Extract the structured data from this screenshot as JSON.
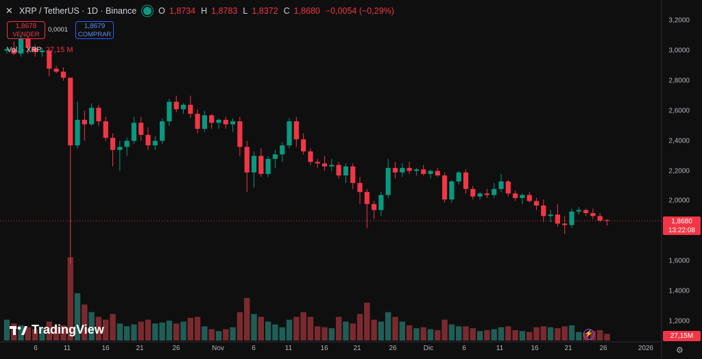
{
  "header": {
    "symbol_title": "XRP / TetherUS · 1D · Binance",
    "ohlc": [
      {
        "k": "O",
        "v": "1,8734"
      },
      {
        "k": "H",
        "v": "1,8783"
      },
      {
        "k": "L",
        "v": "1,8372"
      },
      {
        "k": "C",
        "v": "1,8680"
      }
    ],
    "change": "−0,0054 (−0,29%)"
  },
  "quote": {
    "sell_price": "1,8678",
    "sell_label": "VENDER",
    "spread": "0,0001",
    "buy_price": "1,8679",
    "buy_label": "COMPRAR"
  },
  "volume_legend": {
    "label": "Vol. · XRP",
    "value": "27,15 M"
  },
  "price_tag": {
    "price": "1,8680",
    "countdown": "13:22:08"
  },
  "volume_tag": "27,15M",
  "logo_text": "TradingView",
  "icons": {
    "symbol": "xrp-icon",
    "status": "market-open-dot-icon",
    "flash": "lightning-icon",
    "settings": "gear-icon",
    "logo": "tradingview-logo-icon"
  },
  "colors": {
    "up": "#089981",
    "down": "#f23645",
    "up_volume": "#1f5e56",
    "down_volume": "#7a2a2e",
    "background": "#0f0f0f"
  },
  "chart_data": {
    "type": "candlestick",
    "price_axis": {
      "ticks": [
        "3,2000",
        "3,0000",
        "2,8000",
        "2,6000",
        "2,4000",
        "2,2000",
        "2,0000",
        "1,8000",
        "1,6000",
        "1,4000",
        "1,2000"
      ],
      "range": [
        1.12,
        3.26
      ]
    },
    "time_axis": {
      "ticks": [
        "6",
        "11",
        "16",
        "21",
        "26",
        "Nov",
        "6",
        "11",
        "16",
        "21",
        "26",
        "Dic",
        "6",
        "11",
        "16",
        "21",
        "26",
        "2026"
      ]
    },
    "grid": false,
    "last_price_line": 1.868,
    "candles": [
      [
        3.0,
        3.02,
        2.98,
        3.01,
        22
      ],
      [
        3.01,
        3.06,
        2.97,
        2.98,
        18
      ],
      [
        2.98,
        3.1,
        2.96,
        3.08,
        16
      ],
      [
        3.08,
        3.1,
        2.98,
        3.02,
        14
      ],
      [
        3.02,
        3.04,
        2.96,
        2.99,
        12
      ],
      [
        2.99,
        3.02,
        2.96,
        3.0,
        13
      ],
      [
        3.0,
        3.01,
        2.83,
        2.88,
        20
      ],
      [
        2.88,
        2.9,
        2.85,
        2.86,
        15
      ],
      [
        2.86,
        2.89,
        2.8,
        2.82,
        16
      ],
      [
        2.82,
        2.82,
        1.58,
        2.37,
        88
      ],
      [
        2.37,
        2.66,
        2.35,
        2.54,
        50
      ],
      [
        2.54,
        2.6,
        2.4,
        2.51,
        38
      ],
      [
        2.51,
        2.65,
        2.5,
        2.62,
        30
      ],
      [
        2.62,
        2.64,
        2.5,
        2.53,
        25
      ],
      [
        2.53,
        2.56,
        2.4,
        2.42,
        22
      ],
      [
        2.42,
        2.45,
        2.23,
        2.34,
        28
      ],
      [
        2.34,
        2.4,
        2.2,
        2.36,
        18
      ],
      [
        2.36,
        2.42,
        2.3,
        2.4,
        15
      ],
      [
        2.4,
        2.56,
        2.38,
        2.52,
        17
      ],
      [
        2.52,
        2.56,
        2.4,
        2.44,
        20
      ],
      [
        2.44,
        2.49,
        2.34,
        2.37,
        22
      ],
      [
        2.37,
        2.43,
        2.34,
        2.4,
        18
      ],
      [
        2.4,
        2.55,
        2.38,
        2.53,
        19
      ],
      [
        2.53,
        2.68,
        2.5,
        2.66,
        21
      ],
      [
        2.66,
        2.7,
        2.59,
        2.61,
        18
      ],
      [
        2.61,
        2.65,
        2.58,
        2.64,
        20
      ],
      [
        2.64,
        2.7,
        2.55,
        2.58,
        24
      ],
      [
        2.58,
        2.61,
        2.45,
        2.48,
        25
      ],
      [
        2.48,
        2.6,
        2.46,
        2.57,
        15
      ],
      [
        2.57,
        2.58,
        2.48,
        2.52,
        12
      ],
      [
        2.52,
        2.55,
        2.48,
        2.54,
        10
      ],
      [
        2.54,
        2.56,
        2.48,
        2.51,
        12
      ],
      [
        2.51,
        2.55,
        2.46,
        2.53,
        14
      ],
      [
        2.53,
        2.56,
        2.3,
        2.36,
        30
      ],
      [
        2.36,
        2.4,
        2.06,
        2.19,
        45
      ],
      [
        2.19,
        2.33,
        2.09,
        2.3,
        28
      ],
      [
        2.3,
        2.35,
        2.16,
        2.18,
        25
      ],
      [
        2.18,
        2.3,
        2.16,
        2.28,
        20
      ],
      [
        2.28,
        2.34,
        2.22,
        2.31,
        17
      ],
      [
        2.31,
        2.39,
        2.26,
        2.37,
        14
      ],
      [
        2.37,
        2.55,
        2.35,
        2.53,
        22
      ],
      [
        2.53,
        2.56,
        2.36,
        2.41,
        25
      ],
      [
        2.41,
        2.45,
        2.31,
        2.33,
        30
      ],
      [
        2.33,
        2.35,
        2.24,
        2.26,
        25
      ],
      [
        2.26,
        2.28,
        2.22,
        2.25,
        15
      ],
      [
        2.25,
        2.3,
        2.2,
        2.23,
        14
      ],
      [
        2.23,
        2.28,
        2.2,
        2.24,
        13
      ],
      [
        2.24,
        2.26,
        2.15,
        2.17,
        25
      ],
      [
        2.17,
        2.25,
        2.12,
        2.23,
        20
      ],
      [
        2.23,
        2.25,
        2.08,
        2.12,
        18
      ],
      [
        2.12,
        2.16,
        1.98,
        2.06,
        28
      ],
      [
        2.06,
        2.08,
        1.82,
        1.98,
        40
      ],
      [
        1.98,
        2.0,
        1.88,
        1.94,
        22
      ],
      [
        1.94,
        2.06,
        1.9,
        2.04,
        20
      ],
      [
        2.04,
        2.28,
        2.02,
        2.22,
        30
      ],
      [
        2.22,
        2.26,
        2.15,
        2.19,
        25
      ],
      [
        2.19,
        2.25,
        2.16,
        2.22,
        20
      ],
      [
        2.22,
        2.26,
        2.18,
        2.2,
        16
      ],
      [
        2.2,
        2.22,
        2.17,
        2.21,
        13
      ],
      [
        2.21,
        2.24,
        2.17,
        2.18,
        14
      ],
      [
        2.18,
        2.21,
        2.15,
        2.2,
        12
      ],
      [
        2.2,
        2.22,
        2.16,
        2.17,
        11
      ],
      [
        2.17,
        2.19,
        1.99,
        2.01,
        22
      ],
      [
        2.01,
        2.14,
        1.99,
        2.13,
        17
      ],
      [
        2.13,
        2.2,
        2.11,
        2.19,
        15
      ],
      [
        2.19,
        2.21,
        2.05,
        2.08,
        15
      ],
      [
        2.08,
        2.1,
        2.01,
        2.03,
        13
      ],
      [
        2.03,
        2.06,
        2.01,
        2.05,
        10
      ],
      [
        2.05,
        2.08,
        2.02,
        2.04,
        11
      ],
      [
        2.04,
        2.12,
        2.02,
        2.08,
        12
      ],
      [
        2.08,
        2.18,
        2.06,
        2.13,
        14
      ],
      [
        2.13,
        2.14,
        2.03,
        2.05,
        15
      ],
      [
        2.05,
        2.07,
        2.0,
        2.02,
        11
      ],
      [
        2.02,
        2.05,
        1.98,
        2.04,
        10
      ],
      [
        2.04,
        2.06,
        1.99,
        2.0,
        9
      ],
      [
        2.0,
        2.02,
        1.94,
        1.97,
        14
      ],
      [
        1.97,
        2.01,
        1.86,
        1.9,
        15
      ],
      [
        1.9,
        1.94,
        1.86,
        1.91,
        14
      ],
      [
        1.91,
        1.98,
        1.83,
        1.85,
        13
      ],
      [
        1.85,
        1.9,
        1.78,
        1.84,
        15
      ],
      [
        1.84,
        1.95,
        1.82,
        1.93,
        16
      ],
      [
        1.93,
        1.96,
        1.91,
        1.94,
        9
      ],
      [
        1.94,
        1.95,
        1.9,
        1.92,
        8
      ],
      [
        1.92,
        1.95,
        1.88,
        1.9,
        10
      ],
      [
        1.9,
        1.92,
        1.86,
        1.87,
        11
      ],
      [
        1.8734,
        1.8783,
        1.8372,
        1.868,
        7
      ]
    ]
  }
}
